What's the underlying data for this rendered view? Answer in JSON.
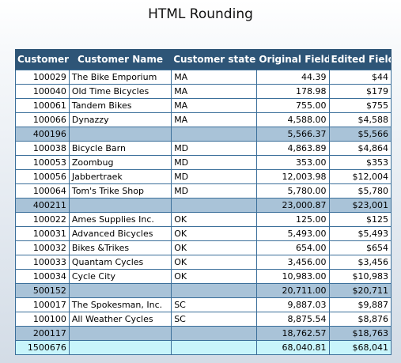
{
  "title": "HTML Rounding",
  "columns": [
    "Customer",
    "Customer Name",
    "Customer state",
    "Original Field",
    "Edited Field"
  ],
  "rows": [
    {
      "type": "detail",
      "customer": "100029",
      "name": "The Bike Emporium",
      "state": "MA",
      "original": "44.39",
      "edited": "$44"
    },
    {
      "type": "detail",
      "customer": "100040",
      "name": "Old Time Bicycles",
      "state": "MA",
      "original": "178.98",
      "edited": "$179"
    },
    {
      "type": "detail",
      "customer": "100061",
      "name": "Tandem Bikes",
      "state": "MA",
      "original": "755.00",
      "edited": "$755"
    },
    {
      "type": "detail",
      "customer": "100066",
      "name": "Dynazzy",
      "state": "MA",
      "original": "4,588.00",
      "edited": "$4,588"
    },
    {
      "type": "subtotal",
      "customer": "400196",
      "name": "",
      "state": "",
      "original": "5,566.37",
      "edited": "$5,566"
    },
    {
      "type": "detail",
      "customer": "100038",
      "name": "Bicycle Barn",
      "state": "MD",
      "original": "4,863.89",
      "edited": "$4,864"
    },
    {
      "type": "detail",
      "customer": "100053",
      "name": "Zoombug",
      "state": "MD",
      "original": "353.00",
      "edited": "$353"
    },
    {
      "type": "detail",
      "customer": "100056",
      "name": "Jabbertraek",
      "state": "MD",
      "original": "12,003.98",
      "edited": "$12,004"
    },
    {
      "type": "detail",
      "customer": "100064",
      "name": "Tom's Trike Shop",
      "state": "MD",
      "original": "5,780.00",
      "edited": "$5,780"
    },
    {
      "type": "subtotal",
      "customer": "400211",
      "name": "",
      "state": "",
      "original": "23,000.87",
      "edited": "$23,001"
    },
    {
      "type": "detail",
      "customer": "100022",
      "name": "Ames Supplies Inc.",
      "state": "OK",
      "original": "125.00",
      "edited": "$125"
    },
    {
      "type": "detail",
      "customer": "100031",
      "name": "Advanced Bicycles",
      "state": "OK",
      "original": "5,493.00",
      "edited": "$5,493"
    },
    {
      "type": "detail",
      "customer": "100032",
      "name": "Bikes &Trikes",
      "state": "OK",
      "original": "654.00",
      "edited": "$654"
    },
    {
      "type": "detail",
      "customer": "100033",
      "name": "Quantam Cycles",
      "state": "OK",
      "original": "3,456.00",
      "edited": "$3,456"
    },
    {
      "type": "detail",
      "customer": "100034",
      "name": "Cycle City",
      "state": "OK",
      "original": "10,983.00",
      "edited": "$10,983"
    },
    {
      "type": "subtotal",
      "customer": "500152",
      "name": "",
      "state": "",
      "original": "20,711.00",
      "edited": "$20,711"
    },
    {
      "type": "detail",
      "customer": "100017",
      "name": "The Spokesman, Inc.",
      "state": "SC",
      "original": "9,887.03",
      "edited": "$9,887"
    },
    {
      "type": "detail",
      "customer": "100100",
      "name": "All Weather Cycles",
      "state": "SC",
      "original": "8,875.54",
      "edited": "$8,876"
    },
    {
      "type": "subtotal",
      "customer": "200117",
      "name": "",
      "state": "",
      "original": "18,762.57",
      "edited": "$18,763"
    },
    {
      "type": "grandtotal",
      "customer": "1500676",
      "name": "",
      "state": "",
      "original": "68,040.81",
      "edited": "$68,041"
    }
  ]
}
